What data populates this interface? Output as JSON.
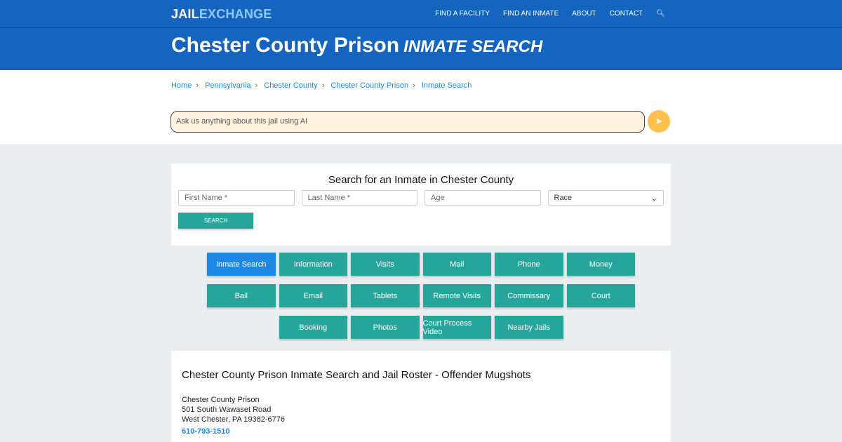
{
  "logo": {
    "part1": "JAIL",
    "part2": "EXCHANGE"
  },
  "nav": [
    "FIND A FACILITY",
    "FIND AN INMATE",
    "ABOUT",
    "CONTACT"
  ],
  "header": {
    "title": "Chester County Prison",
    "subtitle": "INMATE SEARCH"
  },
  "breadcrumbs": [
    "Home",
    "Pennsylvania",
    "Chester County",
    "Chester County Prison",
    "Inmate Search"
  ],
  "ai": {
    "placeholder": "Ask us anything about this jail using AI"
  },
  "search": {
    "heading": "Search for an Inmate in Chester County",
    "first": "First Name *",
    "last": "Last Name *",
    "age": "Age",
    "race": "Race",
    "button": "SEARCH"
  },
  "buttons": [
    "Inmate Search",
    "Information",
    "Visits",
    "Mail",
    "Phone",
    "Money",
    "Bail",
    "Email",
    "Tablets",
    "Remote Visits",
    "Commissary",
    "Court",
    "Booking",
    "Photos",
    "Court Process Video",
    "Nearby Jails"
  ],
  "info": {
    "heading": "Chester County Prison Inmate Search and Jail Roster - Offender Mugshots",
    "name": "Chester County Prison",
    "street": "501 South Wawaset Road",
    "city": "West Chester, PA 19382-6776",
    "phone": "610-793-1510"
  }
}
